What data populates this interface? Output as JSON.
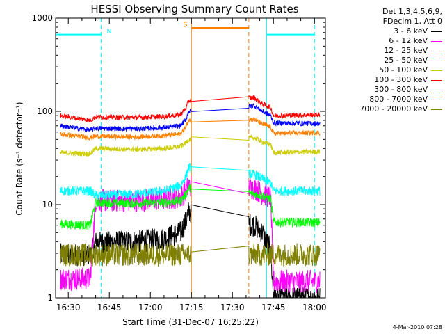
{
  "chart_data": {
    "type": "line",
    "title": "HESSI Observing Summary Count Rates",
    "xlabel": "Start Time (31-Dec-07 16:25:22)",
    "ylabel": "Count Rate (s⁻¹ detector⁻¹)",
    "yscale": "log",
    "xlim": [
      "16:25:22",
      "18:04:00"
    ],
    "ylim": [
      1,
      1000
    ],
    "grid": false,
    "legend_position": "top-right-outside",
    "legend_header": [
      "Det 1,3,4,5,6,9,",
      "FDecim 1, Att 0"
    ],
    "x_ticks": [
      "16:30",
      "16:45",
      "17:00",
      "17:15",
      "17:30",
      "17:45",
      "18:00"
    ],
    "y_ticks": [
      "1",
      "10",
      "100",
      "1000"
    ],
    "data_gap": [
      "17:15",
      "17:36"
    ],
    "annotations": [
      {
        "label": "N",
        "type": "night",
        "x": "16:42",
        "level": 660,
        "color": "#00ffff"
      },
      {
        "label": "S",
        "type": "saa",
        "x": "17:15",
        "level": 780,
        "color": "#ff8000"
      }
    ],
    "vertical_markers": [
      {
        "time": "16:25:22",
        "style": "solid",
        "color": "#00ffff"
      },
      {
        "time": "16:42",
        "style": "dashed",
        "color": "#00ffff"
      },
      {
        "time": "17:15",
        "style": "solid",
        "color": "#ff8000"
      },
      {
        "time": "17:36",
        "style": "dashed",
        "color": "#ff8000"
      },
      {
        "time": "17:42:30",
        "style": "solid",
        "color": "#00ffff"
      },
      {
        "time": "18:00",
        "style": "dashed",
        "color": "#00ffff"
      }
    ],
    "bands": [
      {
        "x": [
          "16:25:22",
          "16:42"
        ],
        "level": 660,
        "color": "#00ffff"
      },
      {
        "x": [
          "17:15",
          "17:36"
        ],
        "level": 780,
        "color": "#ff8000"
      },
      {
        "x": [
          "17:42:30",
          "18:00"
        ],
        "level": 660,
        "color": "#00ffff"
      }
    ],
    "series": [
      {
        "name": "3 - 6 keV",
        "color": "#000000",
        "points": [
          [
            "16:27",
            2.9
          ],
          [
            "16:38",
            2.9
          ],
          [
            "16:40",
            3.9
          ],
          [
            "16:55",
            4.0
          ],
          [
            "17:05",
            4.3
          ],
          [
            "17:11",
            5.0
          ],
          [
            "17:13",
            6.6
          ],
          [
            "17:14",
            8.5
          ],
          [
            "17:38",
            6.0
          ],
          [
            "17:41",
            5.0
          ],
          [
            "17:44",
            3.2
          ],
          [
            "17:45",
            1.0
          ],
          [
            "18:02",
            1.0
          ]
        ]
      },
      {
        "name": "6 - 12 keV",
        "color": "#ff00ff",
        "points": [
          [
            "16:27",
            1.6
          ],
          [
            "16:38",
            1.6
          ],
          [
            "16:40",
            11.0
          ],
          [
            "16:55",
            11.0
          ],
          [
            "17:05",
            11.5
          ],
          [
            "17:11",
            12.0
          ],
          [
            "17:13",
            14.0
          ],
          [
            "17:14",
            16.0
          ],
          [
            "17:38",
            15.0
          ],
          [
            "17:41",
            13.0
          ],
          [
            "17:44",
            12.0
          ],
          [
            "17:45",
            1.5
          ],
          [
            "18:02",
            1.5
          ]
        ]
      },
      {
        "name": "12 - 25 keV",
        "color": "#00ff00",
        "points": [
          [
            "16:27",
            6.2
          ],
          [
            "16:38",
            6.0
          ],
          [
            "16:40",
            10.5
          ],
          [
            "16:55",
            10.3
          ],
          [
            "17:05",
            10.5
          ],
          [
            "17:11",
            11.0
          ],
          [
            "17:13",
            13.0
          ],
          [
            "17:14",
            15.0
          ],
          [
            "17:38",
            13.0
          ],
          [
            "17:41",
            12.5
          ],
          [
            "17:44",
            11.5
          ],
          [
            "17:45",
            6.5
          ],
          [
            "18:02",
            6.4
          ]
        ]
      },
      {
        "name": "25 - 50 keV",
        "color": "#00ffff",
        "points": [
          [
            "16:27",
            14.0
          ],
          [
            "16:38",
            14.0
          ],
          [
            "16:40",
            12.5
          ],
          [
            "16:55",
            13.0
          ],
          [
            "17:05",
            14.0
          ],
          [
            "17:11",
            16.0
          ],
          [
            "17:13",
            20.0
          ],
          [
            "17:14",
            25.0
          ],
          [
            "17:38",
            21.0
          ],
          [
            "17:41",
            19.0
          ],
          [
            "17:44",
            17.0
          ],
          [
            "17:45",
            14.0
          ],
          [
            "18:02",
            14.0
          ]
        ]
      },
      {
        "name": "50 - 100 keV",
        "color": "#cccc00",
        "points": [
          [
            "16:27",
            36.0
          ],
          [
            "16:38",
            35.0
          ],
          [
            "16:40",
            40.0
          ],
          [
            "16:55",
            39.0
          ],
          [
            "17:05",
            40.0
          ],
          [
            "17:11",
            42.0
          ],
          [
            "17:13",
            46.0
          ],
          [
            "17:14",
            50.0
          ],
          [
            "17:38",
            52.0
          ],
          [
            "17:41",
            47.0
          ],
          [
            "17:44",
            44.0
          ],
          [
            "17:45",
            36.0
          ],
          [
            "18:02",
            37.0
          ]
        ]
      },
      {
        "name": "100 - 300 keV",
        "color": "#ff0000",
        "points": [
          [
            "16:27",
            90.0
          ],
          [
            "16:38",
            80.0
          ],
          [
            "16:40",
            87.0
          ],
          [
            "16:55",
            86.0
          ],
          [
            "17:05",
            88.0
          ],
          [
            "17:11",
            92.0
          ],
          [
            "17:13",
            108.0
          ],
          [
            "17:14",
            130.0
          ],
          [
            "17:38",
            140.0
          ],
          [
            "17:41",
            120.0
          ],
          [
            "17:44",
            110.0
          ],
          [
            "17:45",
            90.0
          ],
          [
            "18:02",
            92.0
          ]
        ]
      },
      {
        "name": "300 - 800 keV",
        "color": "#0000ff",
        "points": [
          [
            "16:27",
            70.0
          ],
          [
            "16:38",
            63.0
          ],
          [
            "16:40",
            66.0
          ],
          [
            "16:55",
            65.0
          ],
          [
            "17:05",
            67.0
          ],
          [
            "17:11",
            70.0
          ],
          [
            "17:13",
            82.0
          ],
          [
            "17:14",
            100.0
          ],
          [
            "17:38",
            115.0
          ],
          [
            "17:41",
            100.0
          ],
          [
            "17:44",
            90.0
          ],
          [
            "17:45",
            75.0
          ],
          [
            "18:02",
            74.0
          ]
        ]
      },
      {
        "name": "800 - 7000 keV",
        "color": "#ff8000",
        "points": [
          [
            "16:27",
            57.0
          ],
          [
            "16:38",
            52.0
          ],
          [
            "16:40",
            54.0
          ],
          [
            "16:55",
            53.0
          ],
          [
            "17:05",
            55.0
          ],
          [
            "17:11",
            57.0
          ],
          [
            "17:13",
            68.0
          ],
          [
            "17:14",
            80.0
          ],
          [
            "17:38",
            82.0
          ],
          [
            "17:41",
            73.0
          ],
          [
            "17:44",
            68.0
          ],
          [
            "17:45",
            58.0
          ],
          [
            "18:02",
            59.0
          ]
        ]
      },
      {
        "name": "7000 - 20000 keV",
        "color": "#808000",
        "points": [
          [
            "16:27",
            2.9
          ],
          [
            "16:38",
            2.9
          ],
          [
            "16:40",
            2.9
          ],
          [
            "16:55",
            2.9
          ],
          [
            "17:05",
            2.9
          ],
          [
            "17:11",
            2.9
          ],
          [
            "17:13",
            2.9
          ],
          [
            "17:14",
            2.9
          ],
          [
            "17:38",
            2.9
          ],
          [
            "17:41",
            2.9
          ],
          [
            "17:44",
            2.9
          ],
          [
            "17:45",
            2.9
          ],
          [
            "18:02",
            2.9
          ]
        ]
      }
    ]
  },
  "footer": {
    "timestamp": "4-Mar-2010 07:28"
  }
}
